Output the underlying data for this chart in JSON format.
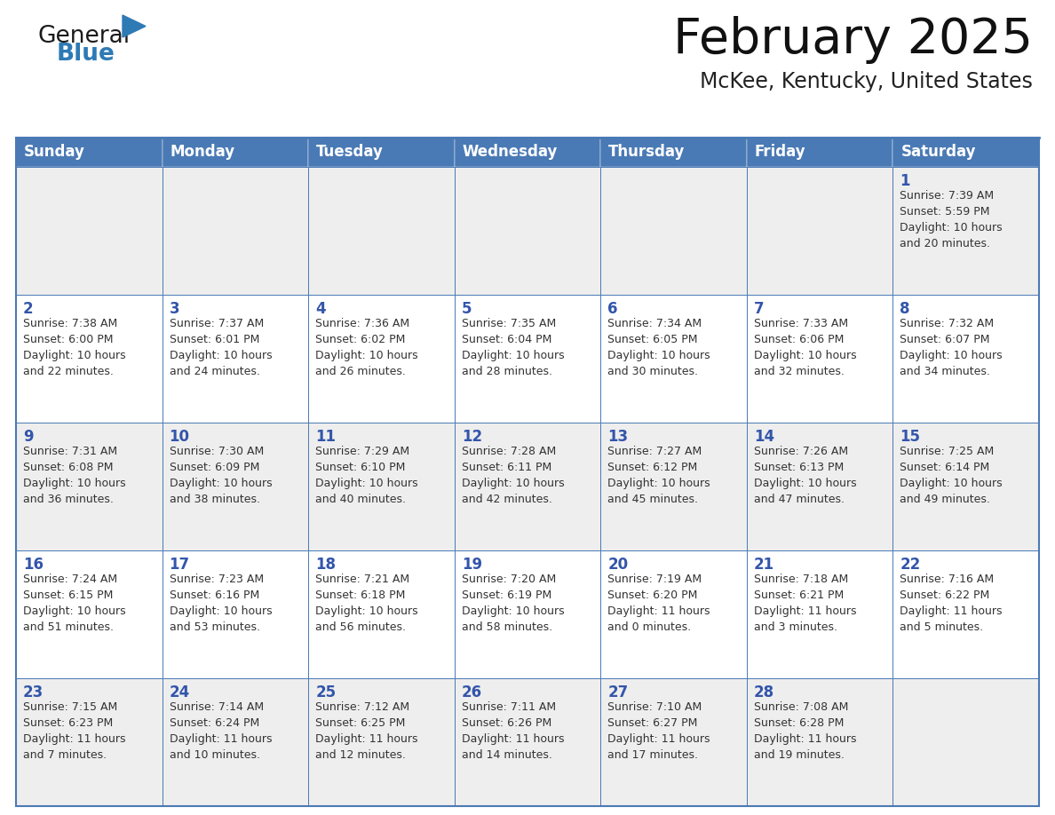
{
  "title": "February 2025",
  "subtitle": "McKee, Kentucky, United States",
  "header_bg": "#4a7ab5",
  "header_text_color": "#ffffff",
  "cell_bg_row0": "#eeeeee",
  "cell_bg_row1": "#ffffff",
  "cell_bg_row2": "#eeeeee",
  "cell_bg_row3": "#ffffff",
  "cell_bg_row4": "#eeeeee",
  "day_number_color": "#3355aa",
  "info_text_color": "#333333",
  "border_color": "#4a7ab5",
  "outer_border_color": "#4a7ab5",
  "days_of_week": [
    "Sunday",
    "Monday",
    "Tuesday",
    "Wednesday",
    "Thursday",
    "Friday",
    "Saturday"
  ],
  "weeks": [
    [
      {
        "day": null,
        "info": null
      },
      {
        "day": null,
        "info": null
      },
      {
        "day": null,
        "info": null
      },
      {
        "day": null,
        "info": null
      },
      {
        "day": null,
        "info": null
      },
      {
        "day": null,
        "info": null
      },
      {
        "day": "1",
        "info": "Sunrise: 7:39 AM\nSunset: 5:59 PM\nDaylight: 10 hours\nand 20 minutes."
      }
    ],
    [
      {
        "day": "2",
        "info": "Sunrise: 7:38 AM\nSunset: 6:00 PM\nDaylight: 10 hours\nand 22 minutes."
      },
      {
        "day": "3",
        "info": "Sunrise: 7:37 AM\nSunset: 6:01 PM\nDaylight: 10 hours\nand 24 minutes."
      },
      {
        "day": "4",
        "info": "Sunrise: 7:36 AM\nSunset: 6:02 PM\nDaylight: 10 hours\nand 26 minutes."
      },
      {
        "day": "5",
        "info": "Sunrise: 7:35 AM\nSunset: 6:04 PM\nDaylight: 10 hours\nand 28 minutes."
      },
      {
        "day": "6",
        "info": "Sunrise: 7:34 AM\nSunset: 6:05 PM\nDaylight: 10 hours\nand 30 minutes."
      },
      {
        "day": "7",
        "info": "Sunrise: 7:33 AM\nSunset: 6:06 PM\nDaylight: 10 hours\nand 32 minutes."
      },
      {
        "day": "8",
        "info": "Sunrise: 7:32 AM\nSunset: 6:07 PM\nDaylight: 10 hours\nand 34 minutes."
      }
    ],
    [
      {
        "day": "9",
        "info": "Sunrise: 7:31 AM\nSunset: 6:08 PM\nDaylight: 10 hours\nand 36 minutes."
      },
      {
        "day": "10",
        "info": "Sunrise: 7:30 AM\nSunset: 6:09 PM\nDaylight: 10 hours\nand 38 minutes."
      },
      {
        "day": "11",
        "info": "Sunrise: 7:29 AM\nSunset: 6:10 PM\nDaylight: 10 hours\nand 40 minutes."
      },
      {
        "day": "12",
        "info": "Sunrise: 7:28 AM\nSunset: 6:11 PM\nDaylight: 10 hours\nand 42 minutes."
      },
      {
        "day": "13",
        "info": "Sunrise: 7:27 AM\nSunset: 6:12 PM\nDaylight: 10 hours\nand 45 minutes."
      },
      {
        "day": "14",
        "info": "Sunrise: 7:26 AM\nSunset: 6:13 PM\nDaylight: 10 hours\nand 47 minutes."
      },
      {
        "day": "15",
        "info": "Sunrise: 7:25 AM\nSunset: 6:14 PM\nDaylight: 10 hours\nand 49 minutes."
      }
    ],
    [
      {
        "day": "16",
        "info": "Sunrise: 7:24 AM\nSunset: 6:15 PM\nDaylight: 10 hours\nand 51 minutes."
      },
      {
        "day": "17",
        "info": "Sunrise: 7:23 AM\nSunset: 6:16 PM\nDaylight: 10 hours\nand 53 minutes."
      },
      {
        "day": "18",
        "info": "Sunrise: 7:21 AM\nSunset: 6:18 PM\nDaylight: 10 hours\nand 56 minutes."
      },
      {
        "day": "19",
        "info": "Sunrise: 7:20 AM\nSunset: 6:19 PM\nDaylight: 10 hours\nand 58 minutes."
      },
      {
        "day": "20",
        "info": "Sunrise: 7:19 AM\nSunset: 6:20 PM\nDaylight: 11 hours\nand 0 minutes."
      },
      {
        "day": "21",
        "info": "Sunrise: 7:18 AM\nSunset: 6:21 PM\nDaylight: 11 hours\nand 3 minutes."
      },
      {
        "day": "22",
        "info": "Sunrise: 7:16 AM\nSunset: 6:22 PM\nDaylight: 11 hours\nand 5 minutes."
      }
    ],
    [
      {
        "day": "23",
        "info": "Sunrise: 7:15 AM\nSunset: 6:23 PM\nDaylight: 11 hours\nand 7 minutes."
      },
      {
        "day": "24",
        "info": "Sunrise: 7:14 AM\nSunset: 6:24 PM\nDaylight: 11 hours\nand 10 minutes."
      },
      {
        "day": "25",
        "info": "Sunrise: 7:12 AM\nSunset: 6:25 PM\nDaylight: 11 hours\nand 12 minutes."
      },
      {
        "day": "26",
        "info": "Sunrise: 7:11 AM\nSunset: 6:26 PM\nDaylight: 11 hours\nand 14 minutes."
      },
      {
        "day": "27",
        "info": "Sunrise: 7:10 AM\nSunset: 6:27 PM\nDaylight: 11 hours\nand 17 minutes."
      },
      {
        "day": "28",
        "info": "Sunrise: 7:08 AM\nSunset: 6:28 PM\nDaylight: 11 hours\nand 19 minutes."
      },
      {
        "day": null,
        "info": null
      }
    ]
  ],
  "logo_text1": "General",
  "logo_text2": "Blue",
  "logo_text1_color": "#1a1a1a",
  "logo_text2_color": "#2e7ab5",
  "logo_triangle_color": "#2e7ab5",
  "title_color": "#111111",
  "subtitle_color": "#222222",
  "fig_width": 11.88,
  "fig_height": 9.18,
  "dpi": 100
}
